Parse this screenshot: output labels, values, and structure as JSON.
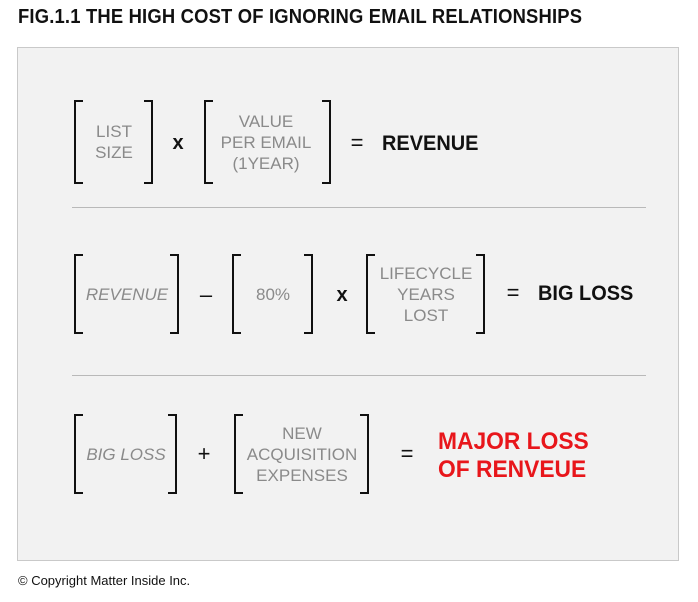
{
  "figure": {
    "title": "FIG.1.1 THE HIGH COST OF IGNORING EMAIL RELATIONSHIPS",
    "accent_color": "#e8161b",
    "rows": [
      {
        "terms": [
          {
            "lines": [
              "LIST",
              "SIZE"
            ]
          },
          {
            "lines": [
              "VALUE",
              "PER EMAIL",
              "(1YEAR)"
            ]
          }
        ],
        "operators": [
          "x"
        ],
        "equals": "=",
        "result": "REVENUE"
      },
      {
        "terms": [
          {
            "lines": [
              "REVENUE"
            ]
          },
          {
            "lines": [
              "80%"
            ]
          },
          {
            "lines": [
              "LIFECYCLE",
              "YEARS",
              "LOST"
            ]
          }
        ],
        "operators": [
          "–",
          "x"
        ],
        "equals": "=",
        "result": "BIG LOSS"
      },
      {
        "terms": [
          {
            "lines": [
              "BIG LOSS"
            ]
          },
          {
            "lines": [
              "NEW",
              "ACQUISITION",
              "EXPENSES"
            ]
          }
        ],
        "operators": [
          "+"
        ],
        "equals": "=",
        "result_lines": [
          "MAJOR LOSS",
          "OF RENVEUE"
        ]
      }
    ]
  },
  "copyright": "© Copyright Matter Inside Inc."
}
